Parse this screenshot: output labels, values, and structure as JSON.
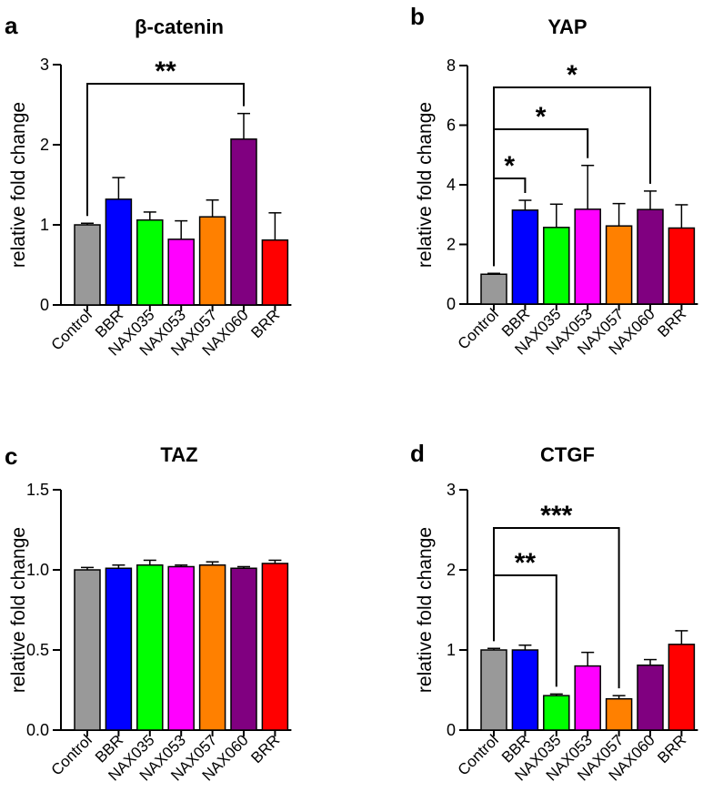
{
  "colors": {
    "Control": "#999999",
    "BBR": "#0000ff",
    "NAX035": "#00ff00",
    "NAX053": "#ff00ff",
    "NAX057": "#ff8000",
    "NAX060": "#800080",
    "BRR": "#ff0000"
  },
  "chart_data": [
    {
      "panel": "a",
      "type": "bar",
      "title": "β-catenin",
      "ylabel": "relative fold change",
      "ylim": [
        0,
        3
      ],
      "yticks": [
        "0",
        "1",
        "2",
        "3"
      ],
      "categories": [
        "Control",
        "BBR",
        "NAX035",
        "NAX053",
        "NAX057",
        "NAX060",
        "BRR"
      ],
      "values": [
        1.0,
        1.32,
        1.06,
        0.82,
        1.1,
        2.07,
        0.81
      ],
      "errors": [
        0.02,
        0.27,
        0.1,
        0.23,
        0.21,
        0.32,
        0.34
      ],
      "significance": [
        {
          "from": 0,
          "to": 5,
          "label": "**"
        }
      ]
    },
    {
      "panel": "b",
      "type": "bar",
      "title": "YAP",
      "ylabel": "relative fold change",
      "ylim": [
        0,
        8
      ],
      "yticks": [
        "0",
        "2",
        "4",
        "6",
        "8"
      ],
      "categories": [
        "Control",
        "BBR",
        "NAX035",
        "NAX053",
        "NAX057",
        "NAX060",
        "BRR"
      ],
      "values": [
        1.0,
        3.15,
        2.57,
        3.18,
        2.62,
        3.17,
        2.55
      ],
      "errors": [
        0.03,
        0.33,
        0.78,
        1.47,
        0.75,
        0.62,
        0.78
      ],
      "significance": [
        {
          "from": 0,
          "to": 1,
          "label": "*"
        },
        {
          "from": 0,
          "to": 3,
          "label": "*"
        },
        {
          "from": 0,
          "to": 5,
          "label": "*"
        }
      ]
    },
    {
      "panel": "c",
      "type": "bar",
      "title": "TAZ",
      "ylabel": "relative fold change",
      "ylim": [
        0,
        1.5
      ],
      "yticks": [
        "0.0",
        "0.5",
        "1.0",
        "1.5"
      ],
      "categories": [
        "Control",
        "BBR",
        "NAX035",
        "NAX053",
        "NAX057",
        "NAX060",
        "BRR"
      ],
      "values": [
        1.0,
        1.01,
        1.03,
        1.02,
        1.03,
        1.01,
        1.04
      ],
      "errors": [
        0.015,
        0.02,
        0.03,
        0.01,
        0.02,
        0.01,
        0.02
      ],
      "significance": []
    },
    {
      "panel": "d",
      "type": "bar",
      "title": "CTGF",
      "ylabel": "relative fold change",
      "ylim": [
        0,
        3
      ],
      "yticks": [
        "0",
        "1",
        "2",
        "3"
      ],
      "categories": [
        "Control",
        "BBR",
        "NAX035",
        "NAX053",
        "NAX057",
        "NAX060",
        "BRR"
      ],
      "values": [
        1.0,
        1.0,
        0.43,
        0.8,
        0.39,
        0.81,
        1.07
      ],
      "errors": [
        0.02,
        0.06,
        0.02,
        0.17,
        0.04,
        0.07,
        0.17
      ],
      "significance": [
        {
          "from": 0,
          "to": 2,
          "label": "**"
        },
        {
          "from": 0,
          "to": 4,
          "label": "***"
        }
      ]
    }
  ]
}
